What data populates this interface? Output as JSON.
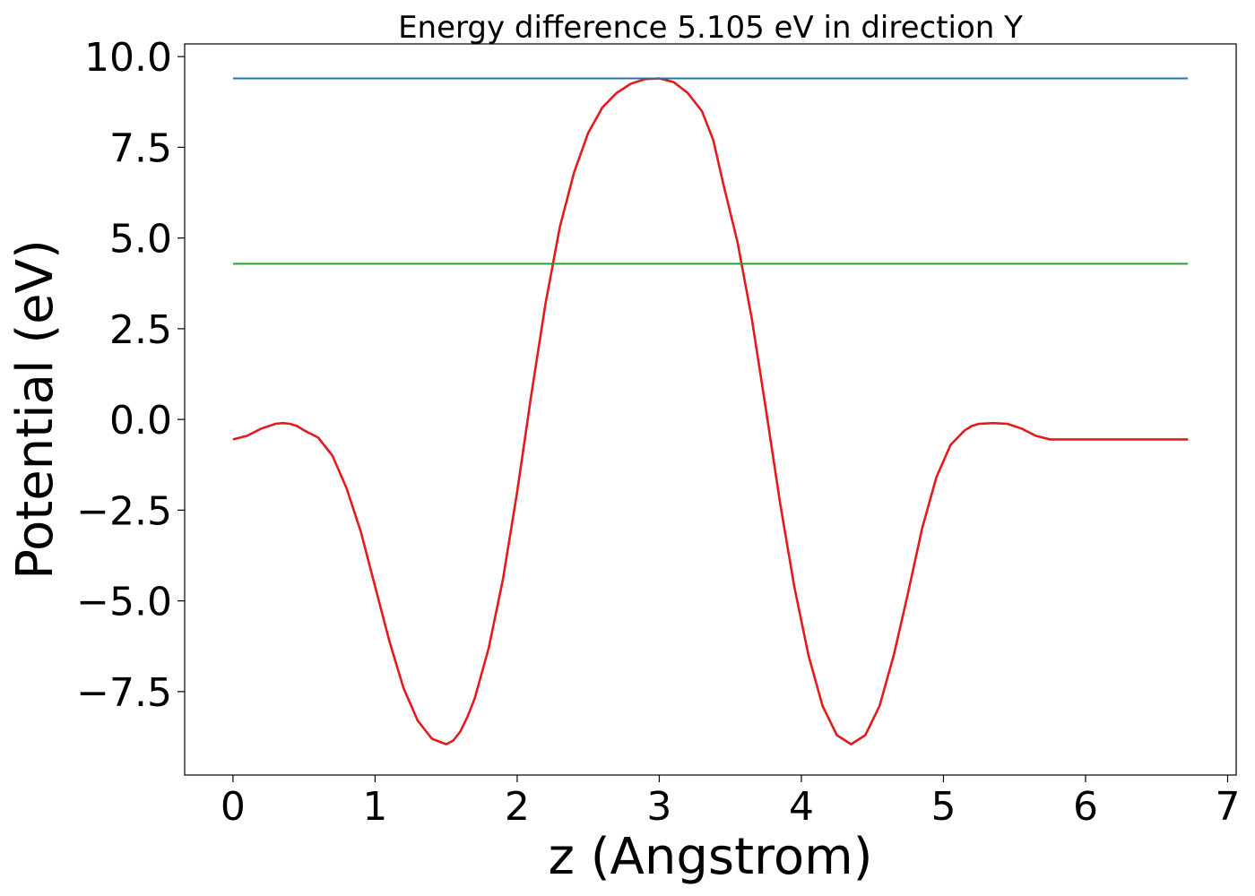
{
  "chart_data": {
    "type": "line",
    "title": "Energy difference 5.105 eV in direction Y",
    "xlabel": "z (Angstrom)",
    "ylabel": "Potential (eV)",
    "xlim": [
      -0.34,
      7.06
    ],
    "ylim": [
      -9.8,
      10.35
    ],
    "xticks": [
      0,
      1,
      2,
      3,
      4,
      5,
      6,
      7
    ],
    "xtick_labels": [
      "0",
      "1",
      "2",
      "3",
      "4",
      "5",
      "6",
      "7"
    ],
    "yticks": [
      10.0,
      7.5,
      5.0,
      2.5,
      0.0,
      -2.5,
      -5.0,
      -7.5
    ],
    "ytick_labels": [
      "10.0",
      "7.5",
      "5.0",
      "2.5",
      "0.0",
      "−2.5",
      "−5.0",
      "−7.5"
    ],
    "grid": false,
    "series": [
      {
        "color": "#e41a1c",
        "x": [
          0,
          0.1,
          0.2,
          0.3,
          0.35,
          0.4,
          0.45,
          0.5,
          0.6,
          0.7,
          0.8,
          0.9,
          1.0,
          1.1,
          1.2,
          1.3,
          1.4,
          1.5,
          1.55,
          1.6,
          1.65,
          1.7,
          1.8,
          1.9,
          2.0,
          2.1,
          2.2,
          2.3,
          2.4,
          2.5,
          2.6,
          2.7,
          2.8,
          2.9,
          3.0,
          3.1,
          3.2,
          3.3,
          3.38,
          3.45,
          3.55,
          3.65,
          3.75,
          3.85,
          3.95,
          4.05,
          4.15,
          4.25,
          4.35,
          4.45,
          4.55,
          4.65,
          4.75,
          4.85,
          4.95,
          5.05,
          5.15,
          5.2,
          5.25,
          5.35,
          5.45,
          5.55,
          5.65,
          5.75,
          5.85,
          5.95,
          6.05,
          6.15,
          6.25,
          6.3,
          6.35,
          6.45,
          6.55,
          6.65,
          6.72
        ],
        "y": [
          -0.55,
          -0.45,
          -0.25,
          -0.12,
          -0.1,
          -0.12,
          -0.18,
          -0.3,
          -0.5,
          -1.0,
          -1.9,
          -3.1,
          -4.6,
          -6.1,
          -7.4,
          -8.3,
          -8.8,
          -8.95,
          -8.85,
          -8.6,
          -8.2,
          -7.7,
          -6.3,
          -4.4,
          -2.0,
          0.7,
          3.2,
          5.3,
          6.8,
          7.9,
          8.6,
          9.0,
          9.25,
          9.38,
          9.4,
          9.3,
          9.0,
          8.5,
          7.7,
          6.5,
          4.9,
          2.8,
          0.3,
          -2.3,
          -4.6,
          -6.5,
          -7.9,
          -8.7,
          -8.95,
          -8.7,
          -7.9,
          -6.5,
          -4.8,
          -3.0,
          -1.6,
          -0.7,
          -0.3,
          -0.18,
          -0.12,
          -0.1,
          -0.12,
          -0.25,
          -0.45,
          -0.55,
          -0.55,
          -0.55,
          -0.55,
          -0.55,
          -0.55,
          -0.55,
          -0.55,
          -0.55,
          -0.55,
          -0.55,
          -0.55
        ]
      },
      {
        "color": "#1f77b4",
        "x": [
          0,
          6.72
        ],
        "y": [
          9.4,
          9.4
        ]
      },
      {
        "color": "#2ca02c",
        "x": [
          0,
          6.72
        ],
        "y": [
          4.29,
          4.29
        ]
      }
    ]
  }
}
